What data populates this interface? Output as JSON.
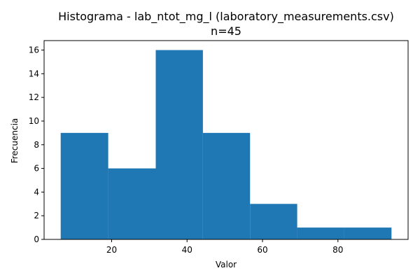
{
  "chart_data": {
    "type": "bar",
    "title": "Histograma - lab_ntot_mg_l (laboratory_measurements.csv)",
    "subtitle": "n=45",
    "xlabel": "Valor",
    "ylabel": "Frecuencia",
    "bins": [
      {
        "start": 6.5,
        "end": 19.1,
        "count": 9
      },
      {
        "start": 19.1,
        "end": 31.7,
        "count": 6
      },
      {
        "start": 31.7,
        "end": 44.2,
        "count": 16
      },
      {
        "start": 44.2,
        "end": 56.7,
        "count": 9
      },
      {
        "start": 56.7,
        "end": 69.2,
        "count": 3
      },
      {
        "start": 69.2,
        "end": 81.7,
        "count": 1
      },
      {
        "start": 81.7,
        "end": 94.2,
        "count": 1
      }
    ],
    "xlim": [
      2.1,
      98.6
    ],
    "ylim": [
      0,
      16.8
    ],
    "xticks": [
      20,
      40,
      60,
      80
    ],
    "yticks": [
      0,
      2,
      4,
      6,
      8,
      10,
      12,
      14,
      16
    ],
    "grid": false,
    "bar_color": "#1f77b4"
  }
}
